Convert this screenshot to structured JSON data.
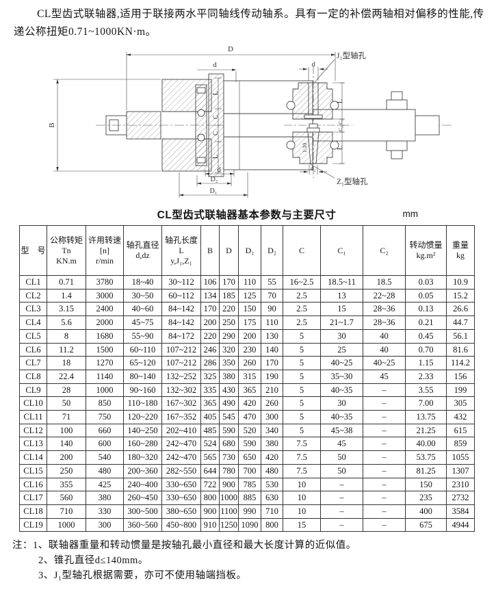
{
  "intro": {
    "text": "CL型齿式联轴器,适用于联接两水平同轴线传动轴系。具有一定的补偿两轴相对偏移的性能,传递公称扭矩0.71~1000KN·m。"
  },
  "diagram": {
    "left_view": {
      "dim_D": "D",
      "dim_d_top": "d",
      "dim_B": "B",
      "dim_L_upper": "L",
      "dim_C_upper": "C",
      "dim_C_lower": "C",
      "dim_L_lower": "L",
      "dim_d_bottom": "d",
      "dim_D2": "D₂",
      "dim_D1": "D₁"
    },
    "right_view": {
      "label_J1": "J₁型轴孔",
      "label_Z1": "Z₁型轴孔",
      "dim_d": "d",
      "dim_L_upper": "L",
      "dim_C1": "C₁",
      "dim_C2": "C₂",
      "taper": "1:10",
      "dim_L_lower": "L",
      "dim_d2": "d₂"
    }
  },
  "table": {
    "title": "CL型齿式联轴器基本参数与主要尺寸",
    "unit": "mm",
    "columns": [
      {
        "id": "model",
        "lines": [
          "型　号"
        ]
      },
      {
        "id": "torque",
        "lines": [
          "公称转矩",
          "Tn",
          "KN.m"
        ]
      },
      {
        "id": "speed",
        "lines": [
          "许用转速",
          "[n]",
          "r/min"
        ]
      },
      {
        "id": "bore-dia",
        "lines": [
          "轴孔直径",
          "d,dz"
        ]
      },
      {
        "id": "bore-len",
        "lines": [
          "轴孔长度",
          "L",
          "y,J₁,Z₁"
        ]
      },
      {
        "id": "B",
        "lines": [
          "B"
        ]
      },
      {
        "id": "D",
        "lines": [
          "D"
        ]
      },
      {
        "id": "D1",
        "lines": [
          "D₁"
        ]
      },
      {
        "id": "D2",
        "lines": [
          "D₂"
        ]
      },
      {
        "id": "C",
        "lines": [
          "C"
        ]
      },
      {
        "id": "C1",
        "lines": [
          "C₁"
        ]
      },
      {
        "id": "C2",
        "lines": [
          "C₂"
        ]
      },
      {
        "id": "inertia",
        "lines": [
          "转动惯量",
          "kg.m²"
        ]
      },
      {
        "id": "weight",
        "lines": [
          "重量",
          "kg"
        ]
      }
    ],
    "rows": [
      [
        "CL1",
        "0.71",
        "3780",
        "18~40",
        "30~112",
        "106",
        "170",
        "110",
        "55",
        "16~2.5",
        "18.5~11",
        "18.5",
        "0.03",
        "10.9"
      ],
      [
        "CL2",
        "1.4",
        "3000",
        "30~50",
        "60~112",
        "134",
        "185",
        "125",
        "70",
        "2.5",
        "13",
        "22~28",
        "0.05",
        "15.2"
      ],
      [
        "CL3",
        "3.15",
        "2400",
        "40~60",
        "84~142",
        "170",
        "220",
        "150",
        "90",
        "2.5",
        "15",
        "28~36",
        "0.13",
        "26.6"
      ],
      [
        "CL4",
        "5.6",
        "2000",
        "45~75",
        "84~142",
        "200",
        "250",
        "175",
        "110",
        "2.5",
        "21~1.7",
        "28~36",
        "0.21",
        "44.7"
      ],
      [
        "CL5",
        "8",
        "1680",
        "55~90",
        "84~172",
        "220",
        "290",
        "200",
        "130",
        "5",
        "30",
        "40",
        "0.45",
        "56.1"
      ],
      [
        "CL6",
        "11.2",
        "1500",
        "60~110",
        "107~212",
        "246",
        "320",
        "230",
        "140",
        "5",
        "25",
        "40",
        "0.70",
        "81.6"
      ],
      [
        "CL7",
        "18",
        "1270",
        "65~120",
        "107~212",
        "286",
        "350",
        "260",
        "170",
        "5",
        "40~25",
        "40~25",
        "1.15",
        "114.2"
      ],
      [
        "CL8",
        "22.4",
        "1140",
        "80~140",
        "132~252",
        "325",
        "380",
        "315",
        "190",
        "5",
        "35~30",
        "45",
        "2.33",
        "156"
      ],
      [
        "CL9",
        "28",
        "1000",
        "90~160",
        "132~302",
        "335",
        "430",
        "365",
        "210",
        "5",
        "40~35",
        "–",
        "3.55",
        "199"
      ],
      [
        "CL10",
        "50",
        "850",
        "110~180",
        "167~302",
        "365",
        "490",
        "420",
        "260",
        "5",
        "30",
        "–",
        "7.00",
        "305"
      ],
      [
        "CL11",
        "71",
        "750",
        "120~220",
        "167~352",
        "405",
        "545",
        "470",
        "300",
        "5",
        "40~35",
        "–",
        "13.75",
        "432"
      ],
      [
        "CL12",
        "100",
        "660",
        "140~250",
        "202~410",
        "485",
        "590",
        "520",
        "340",
        "5",
        "45~38",
        "–",
        "21.25",
        "615"
      ],
      [
        "CL13",
        "140",
        "600",
        "160~280",
        "242~470",
        "524",
        "680",
        "590",
        "380",
        "7.5",
        "45",
        "–",
        "40.00",
        "859"
      ],
      [
        "CL14",
        "200",
        "540",
        "180~320",
        "242~470",
        "565",
        "730",
        "650",
        "420",
        "7.5",
        "50",
        "–",
        "53.75",
        "1055"
      ],
      [
        "CL15",
        "250",
        "480",
        "200~360",
        "282~550",
        "644",
        "780",
        "700",
        "480",
        "7.5",
        "50",
        "–",
        "81.25",
        "1307"
      ],
      [
        "CL16",
        "355",
        "425",
        "240~400",
        "330~650",
        "722",
        "900",
        "785",
        "530",
        "10",
        "–",
        "–",
        "150",
        "2310"
      ],
      [
        "CL17",
        "560",
        "380",
        "260~450",
        "330~650",
        "800",
        "1000",
        "885",
        "630",
        "10",
        "–",
        "–",
        "235",
        "2732"
      ],
      [
        "CL18",
        "710",
        "330",
        "300~500",
        "380~650",
        "900",
        "1100",
        "990",
        "710",
        "10",
        "–",
        "–",
        "400",
        "3584"
      ],
      [
        "CL19",
        "1000",
        "300",
        "360~560",
        "450~800",
        "910",
        "1250",
        "1090",
        "800",
        "15",
        "–",
        "–",
        "675",
        "4944"
      ]
    ]
  },
  "notes": {
    "prefix": "注：",
    "items": [
      "1、联轴器重量和转动惯量是按轴孔最小直径和最大长度计算的近似值。",
      "2、锥孔直径d≤140mm。",
      "3、J₁型轴孔根据需要，亦可不使用轴端挡板。"
    ]
  }
}
